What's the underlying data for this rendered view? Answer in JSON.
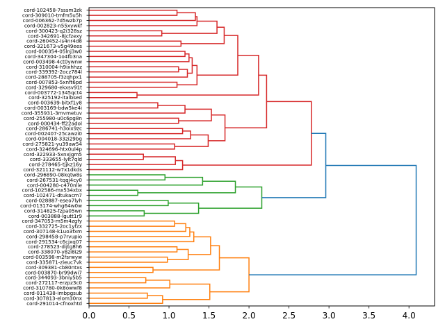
{
  "chart_data": {
    "type": "dendrogram",
    "orientation": "left",
    "title": "",
    "xlabel": "",
    "ylabel": "",
    "xlim": [
      0,
      4.32
    ],
    "xticks": [
      0.0,
      0.5,
      1.0,
      1.5,
      2.0,
      2.5,
      3.0,
      3.5,
      4.0
    ],
    "xtick_labels": [
      "0.0",
      "0.5",
      "1.0",
      "1.5",
      "2.0",
      "2.5",
      "3.0",
      "3.5",
      "4.0"
    ],
    "grid": false,
    "colors": {
      "cluster_red": "#d62728",
      "cluster_green": "#2ca02c",
      "cluster_orange": "#ff7f0e",
      "above_threshold": "#1f77b4"
    },
    "leaves": [
      "cord-102458-7sssm3zk",
      "cord-309010-tmfm5u5h",
      "cord-006362-7d5wzb7p",
      "cord-002823-n55xywkf",
      "cord-300423-q2i328sz",
      "cord-342691-8jcfzexy",
      "cord-260452-is4nr4d8",
      "cord-321673-v5g49ees",
      "cord-000354-05lnj3w0",
      "cord-347304-1o4fb3na",
      "cord-003498-4ct0ywnw",
      "cord-310004-h9ixhhzz",
      "cord-339392-2ocz784l",
      "cord-288705-f3zqhpx1",
      "cord-007853-5xnft6pd",
      "cord-329680-ekxsv91t",
      "cord-003772-1345qct4",
      "cord-325192-italbsed",
      "cord-003639-bitxf1y8",
      "cord-003169-bdw5ke4i",
      "cord-355931-3mvmetuv",
      "cord-255980-u0c6pg8n",
      "cord-000434-ff22adol",
      "cord-286741-h3oix9zc",
      "cord-002407-25cawzi0",
      "cord-004018-33zi29bg",
      "cord-275821-yu39aw54",
      "cord-324696-htx0ul4p",
      "cord-322933-5xnxjgm5",
      "cord-333655-lylt7qld",
      "cord-278465-tjjkz16y",
      "cord-321112-w7x1dkds",
      "cord-296890-08kqtw8s",
      "cord-267531-tqqj4cy0",
      "cord-004280-c470nlie",
      "cord-102586-mx534xbx",
      "cord-102471-dtukacm7",
      "cord-028887-eseo7lyh",
      "cord-013174-whg64w0w",
      "cord-314825-fzpa05wn",
      "cord-003888-lgutt1r9",
      "cord-347053-m5m4zgfy",
      "cord-332725-2oc1yfzx",
      "cord-307148-k1uo3fxm",
      "cord-298458-p7rvupio",
      "cord-291534-c6cjxq07",
      "cord-278523-dijtg8h6",
      "cord-338070-y8zi8iz9",
      "cord-003598-m2fsrwyw",
      "cord-335871-zieuc7vk",
      "cord-309381-cb80ntxs",
      "cord-003870-br99dwi7",
      "cord-344093-3bniy5b5",
      "cord-272117-erzpz3c0",
      "cord-310780-0k8owwf8",
      "cord-011438-imbpgsub",
      "cord-307813-elom30nx",
      "cord-291014-cfnoxhtd"
    ],
    "merges": [
      {
        "id": "r1",
        "children": [
          0,
          1
        ],
        "height": 1.1,
        "color": "cluster_red"
      },
      {
        "id": "r2",
        "children": [
          "r1",
          2
        ],
        "height": 1.33,
        "color": "cluster_red"
      },
      {
        "id": "r3",
        "children": [
          "r2",
          3
        ],
        "height": 1.35,
        "color": "cluster_red"
      },
      {
        "id": "r4",
        "children": [
          4,
          5
        ],
        "height": 0.91,
        "color": "cluster_red"
      },
      {
        "id": "r5",
        "children": [
          "r3",
          "r4"
        ],
        "height": 1.6,
        "color": "cluster_red"
      },
      {
        "id": "r6",
        "children": [
          6,
          7
        ],
        "height": 1.15,
        "color": "cluster_red"
      },
      {
        "id": "r7",
        "children": [
          "r5",
          "r6"
        ],
        "height": 1.69,
        "color": "cluster_red"
      },
      {
        "id": "r8",
        "children": [
          8,
          9
        ],
        "height": 1.2,
        "color": "cluster_red"
      },
      {
        "id": "r9",
        "children": [
          "r8",
          10
        ],
        "height": 1.25,
        "color": "cluster_red"
      },
      {
        "id": "r10",
        "children": [
          11,
          12
        ],
        "height": 1.12,
        "color": "cluster_red"
      },
      {
        "id": "r11",
        "children": [
          "r10",
          13
        ],
        "height": 1.23,
        "color": "cluster_red"
      },
      {
        "id": "r12",
        "children": [
          "r9",
          "r11"
        ],
        "height": 1.29,
        "color": "cluster_red"
      },
      {
        "id": "r13",
        "children": [
          14,
          15
        ],
        "height": 1.1,
        "color": "cluster_red"
      },
      {
        "id": "r14",
        "children": [
          "r12",
          "r13"
        ],
        "height": 1.35,
        "color": "cluster_red"
      },
      {
        "id": "r15",
        "children": [
          "r7",
          "r14"
        ],
        "height": 1.86,
        "color": "cluster_red"
      },
      {
        "id": "r16",
        "children": [
          16,
          17
        ],
        "height": 0.6,
        "color": "cluster_red"
      },
      {
        "id": "r17",
        "children": [
          "r15",
          "r16"
        ],
        "height": 2.12,
        "color": "cluster_red"
      },
      {
        "id": "r18",
        "children": [
          18,
          19
        ],
        "height": 0.86,
        "color": "cluster_red"
      },
      {
        "id": "r19",
        "children": [
          "r18",
          20
        ],
        "height": 1.2,
        "color": "cluster_red"
      },
      {
        "id": "r20",
        "children": [
          21,
          22
        ],
        "height": 1.12,
        "color": "cluster_red"
      },
      {
        "id": "r21",
        "children": [
          "r19",
          "r20"
        ],
        "height": 1.53,
        "color": "cluster_red"
      },
      {
        "id": "r22",
        "children": [
          23,
          24
        ],
        "height": 1.17,
        "color": "cluster_red"
      },
      {
        "id": "r23",
        "children": [
          "r22",
          25
        ],
        "height": 1.27,
        "color": "cluster_red"
      },
      {
        "id": "r24",
        "children": [
          26,
          27
        ],
        "height": 1.07,
        "color": "cluster_red"
      },
      {
        "id": "r25",
        "children": [
          "r23",
          "r24"
        ],
        "height": 1.49,
        "color": "cluster_red"
      },
      {
        "id": "r26",
        "children": [
          "r21",
          "r25"
        ],
        "height": 1.7,
        "color": "cluster_red"
      },
      {
        "id": "r27",
        "children": [
          "r17",
          "r26"
        ],
        "height": 2.22,
        "color": "cluster_red"
      },
      {
        "id": "r28",
        "children": [
          28,
          29
        ],
        "height": 0.68,
        "color": "cluster_red"
      },
      {
        "id": "r29",
        "children": [
          "r28",
          30
        ],
        "height": 1.08,
        "color": "cluster_red"
      },
      {
        "id": "r30",
        "children": [
          "r29",
          31
        ],
        "height": 1.17,
        "color": "cluster_red"
      },
      {
        "id": "r31",
        "children": [
          "r27",
          "r30"
        ],
        "height": 2.78,
        "color": "cluster_red"
      },
      {
        "id": "g1",
        "children": [
          32,
          33
        ],
        "height": 0.95,
        "color": "cluster_green"
      },
      {
        "id": "g2",
        "children": [
          "g1",
          34
        ],
        "height": 1.42,
        "color": "cluster_green"
      },
      {
        "id": "g3",
        "children": [
          35,
          36
        ],
        "height": 0.61,
        "color": "cluster_green"
      },
      {
        "id": "g4",
        "children": [
          "g2",
          "g3"
        ],
        "height": 1.83,
        "color": "cluster_green"
      },
      {
        "id": "g5",
        "children": [
          37,
          38
        ],
        "height": 0.99,
        "color": "cluster_green"
      },
      {
        "id": "g6",
        "children": [
          39,
          40
        ],
        "height": 0.69,
        "color": "cluster_green"
      },
      {
        "id": "g7",
        "children": [
          "g5",
          "g6"
        ],
        "height": 1.37,
        "color": "cluster_green"
      },
      {
        "id": "g8",
        "children": [
          "g4",
          "g7"
        ],
        "height": 2.16,
        "color": "cluster_green"
      },
      {
        "id": "b1",
        "children": [
          "r31",
          "g8"
        ],
        "height": 2.96,
        "color": "above_threshold"
      },
      {
        "id": "o1",
        "children": [
          41,
          42
        ],
        "height": 1.07,
        "color": "cluster_orange"
      },
      {
        "id": "o2",
        "children": [
          "o1",
          43
        ],
        "height": 1.21,
        "color": "cluster_orange"
      },
      {
        "id": "o3",
        "children": [
          "o2",
          44
        ],
        "height": 1.26,
        "color": "cluster_orange"
      },
      {
        "id": "o4",
        "children": [
          "o3",
          45
        ],
        "height": 1.31,
        "color": "cluster_orange"
      },
      {
        "id": "o5",
        "children": [
          46,
          47
        ],
        "height": 1.1,
        "color": "cluster_orange"
      },
      {
        "id": "o6",
        "children": [
          48,
          49
        ],
        "height": 0.98,
        "color": "cluster_orange"
      },
      {
        "id": "o7",
        "children": [
          "o5",
          "o6"
        ],
        "height": 1.24,
        "color": "cluster_orange"
      },
      {
        "id": "o8",
        "children": [
          "o4",
          "o7"
        ],
        "height": 1.52,
        "color": "cluster_orange"
      },
      {
        "id": "o9",
        "children": [
          50,
          51
        ],
        "height": 0.8,
        "color": "cluster_orange"
      },
      {
        "id": "o10",
        "children": [
          "o8",
          "o9"
        ],
        "height": 1.63,
        "color": "cluster_orange"
      },
      {
        "id": "o11",
        "children": [
          52,
          53
        ],
        "height": 0.71,
        "color": "cluster_orange"
      },
      {
        "id": "o12",
        "children": [
          "o11",
          54
        ],
        "height": 1.01,
        "color": "cluster_orange"
      },
      {
        "id": "o13",
        "children": [
          55,
          56
        ],
        "height": 0.73,
        "color": "cluster_orange"
      },
      {
        "id": "o14",
        "children": [
          "o13",
          57
        ],
        "height": 0.92,
        "color": "cluster_orange"
      },
      {
        "id": "o15",
        "children": [
          "o12",
          "o14"
        ],
        "height": 1.51,
        "color": "cluster_orange"
      },
      {
        "id": "o16",
        "children": [
          "o10",
          "o15"
        ],
        "height": 2.0,
        "color": "cluster_orange"
      },
      {
        "id": "b2",
        "children": [
          "b1",
          "o16"
        ],
        "height": 4.09,
        "color": "above_threshold"
      }
    ]
  }
}
